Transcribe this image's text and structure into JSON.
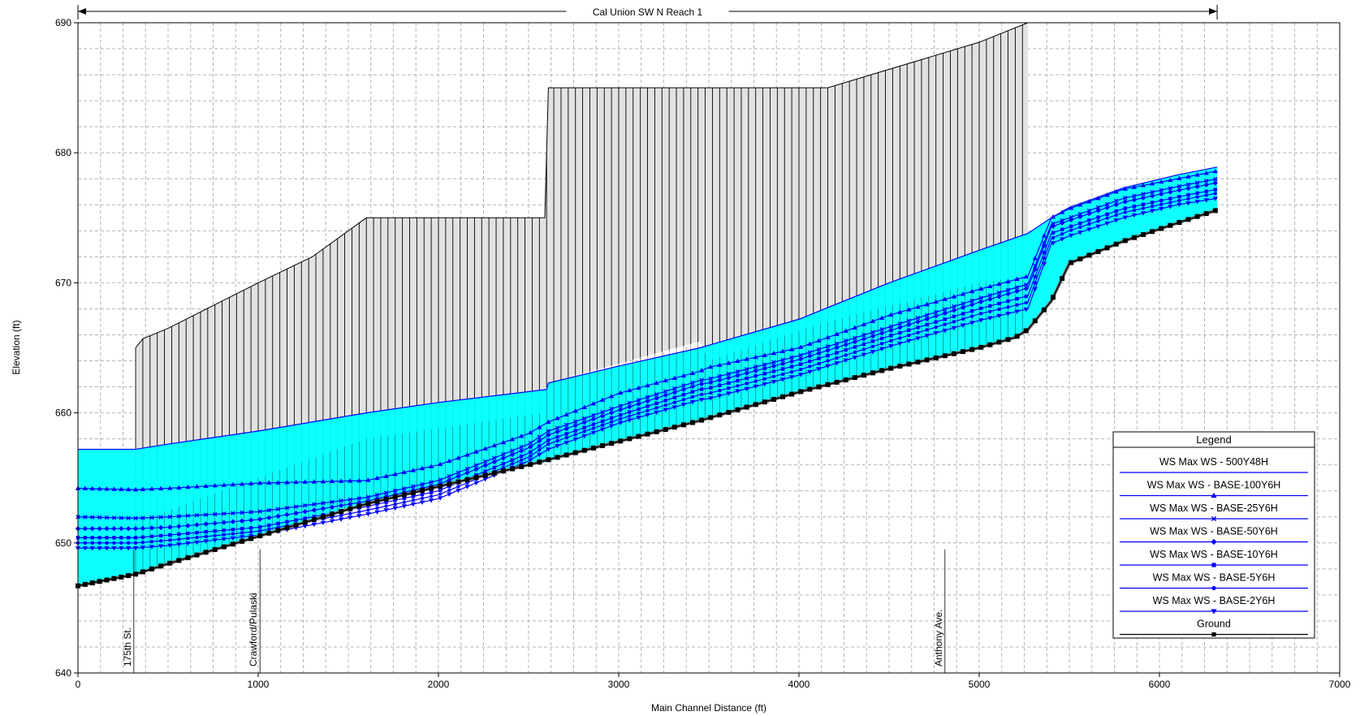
{
  "chart_data": {
    "type": "line",
    "title": "",
    "reach_label": "Cal Union SW N Reach 1",
    "xlabel": "Main Channel Distance (ft)",
    "ylabel": "Elevation (ft)",
    "xlim": [
      0,
      7000
    ],
    "ylim": [
      640,
      690
    ],
    "x_ticks": [
      0,
      1000,
      2000,
      3000,
      4000,
      5000,
      6000,
      7000
    ],
    "y_ticks": [
      640,
      650,
      660,
      670,
      680,
      690
    ],
    "x_tick_labels": [
      "0",
      "1000",
      "2000",
      "3000",
      "4000",
      "5000",
      "6000",
      "7000"
    ],
    "y_tick_labels": [
      "640",
      "650",
      "660",
      "670",
      "680",
      "690"
    ],
    "grid": true,
    "legend_position": "lower-right",
    "legend_title": "Legend",
    "reach_extent": [
      0,
      6320
    ],
    "colors": {
      "water_fill": "#00ffff",
      "ws_line": "#0000ff",
      "ground": "#000000",
      "structure_fill": "#e2e2e2",
      "grid": "#b4b4b4"
    },
    "annotations": [
      {
        "label": "175th St.",
        "x": 310
      },
      {
        "label": "Crawford/Pulaski",
        "x": 1010
      },
      {
        "label": "Anthony Ave.",
        "x": 4810
      }
    ],
    "ground": {
      "name": "Ground",
      "x": [
        0,
        320,
        500,
        1000,
        1600,
        2500,
        2610,
        3000,
        3450,
        3600,
        4000,
        4500,
        5000,
        5200,
        5270,
        5400,
        5500,
        5800,
        6100,
        6320
      ],
      "y": [
        646.7,
        647.6,
        648.4,
        650.5,
        653.0,
        656.0,
        656.4,
        657.8,
        659.4,
        660.0,
        661.6,
        663.4,
        665.0,
        665.8,
        666.4,
        668.6,
        671.5,
        673.2,
        674.6,
        675.6
      ]
    },
    "structure": {
      "x": [
        320,
        360,
        500,
        1000,
        1300,
        1600,
        2590,
        2600,
        2610,
        3450,
        3500,
        4150,
        4160,
        5000,
        5270
      ],
      "top": [
        665.0,
        665.7,
        666.5,
        670.0,
        672.0,
        675.0,
        675.0,
        680.0,
        685.0,
        685.0,
        685.0,
        685.0,
        685.0,
        688.5,
        690.0
      ],
      "bottom": [
        651.5,
        651.8,
        652.5,
        655.0,
        656.5,
        658.0,
        660.0,
        662.0,
        662.3,
        665.5,
        664.0,
        667.0,
        667.0,
        670.0,
        670.5
      ]
    },
    "series": [
      {
        "name": "WS  Max WS - 500Y48H",
        "marker": "none",
        "x": [
          0,
          320,
          500,
          1000,
          1600,
          2000,
          2600,
          2610,
          3000,
          3450,
          3500,
          4000,
          4500,
          5000,
          5270,
          5400,
          5500,
          5800,
          6100,
          6320
        ],
        "y": [
          657.2,
          657.2,
          657.6,
          658.6,
          660.0,
          660.8,
          661.8,
          662.3,
          663.6,
          665.0,
          665.2,
          667.2,
          670.0,
          672.5,
          673.8,
          675.0,
          675.8,
          677.3,
          678.3,
          678.9
        ]
      },
      {
        "name": "WS  Max WS - BASE-100Y6H",
        "marker": "triangle",
        "x": [
          0,
          320,
          500,
          1000,
          1600,
          2000,
          2500,
          2610,
          3000,
          3450,
          3500,
          4000,
          4500,
          5000,
          5270,
          5400,
          5500,
          5800,
          6100,
          6320
        ],
        "y": [
          654.2,
          654.1,
          654.2,
          654.6,
          654.8,
          656.0,
          658.4,
          659.3,
          661.5,
          663.2,
          663.5,
          665.0,
          667.5,
          669.5,
          670.5,
          675.0,
          675.7,
          677.2,
          678.0,
          678.6
        ]
      },
      {
        "name": "WS  Max WS - BASE-25Y6H",
        "marker": "x",
        "x": [
          0,
          320,
          500,
          1000,
          1600,
          2000,
          2500,
          2610,
          3000,
          3450,
          3500,
          4000,
          4500,
          5000,
          5270,
          5400,
          5500,
          5800,
          6100,
          6320
        ],
        "y": [
          652.0,
          651.9,
          652.0,
          652.4,
          653.5,
          654.8,
          657.6,
          658.6,
          660.5,
          662.5,
          662.6,
          664.4,
          666.6,
          668.8,
          669.9,
          674.5,
          675.0,
          676.5,
          677.4,
          678.0
        ]
      },
      {
        "name": "WS  Max WS - BASE-50Y6H",
        "marker": "diamond",
        "x": [
          0,
          320,
          500,
          1000,
          1600,
          2000,
          2500,
          2610,
          3000,
          3450,
          3500,
          4000,
          4500,
          5000,
          5270,
          5400,
          5500,
          5800,
          6100,
          6320
        ],
        "y": [
          651.1,
          651.1,
          651.2,
          651.8,
          653.2,
          654.5,
          657.3,
          658.3,
          660.2,
          662.2,
          662.3,
          664.1,
          666.3,
          668.5,
          669.6,
          674.3,
          674.8,
          676.2,
          677.1,
          677.7
        ]
      },
      {
        "name": "WS  Max WS - BASE-10Y6H",
        "marker": "square",
        "x": [
          0,
          320,
          500,
          1000,
          1600,
          2000,
          2500,
          2610,
          3000,
          3450,
          3500,
          4000,
          4500,
          5000,
          5270,
          5400,
          5500,
          5800,
          6100,
          6320
        ],
        "y": [
          650.4,
          650.4,
          650.6,
          651.2,
          652.8,
          654.0,
          656.9,
          657.9,
          659.8,
          661.8,
          661.9,
          663.7,
          665.9,
          668.0,
          669.0,
          673.8,
          674.3,
          675.7,
          676.6,
          677.2
        ]
      },
      {
        "name": "WS  Max WS - BASE-5Y6H",
        "marker": "circle",
        "x": [
          0,
          320,
          500,
          1000,
          1600,
          2000,
          2500,
          2610,
          3000,
          3450,
          3500,
          4000,
          4500,
          5000,
          5270,
          5400,
          5500,
          5800,
          6100,
          6320
        ],
        "y": [
          650.0,
          650.0,
          650.2,
          650.9,
          652.5,
          653.7,
          656.6,
          657.6,
          659.5,
          661.4,
          661.5,
          663.3,
          665.5,
          667.6,
          668.5,
          673.4,
          674.0,
          675.4,
          676.3,
          676.9
        ]
      },
      {
        "name": "WS  Max WS - BASE-2Y6H",
        "marker": "triangle-down",
        "x": [
          0,
          320,
          500,
          1000,
          1600,
          2000,
          2500,
          2610,
          3000,
          3450,
          3500,
          4000,
          4500,
          5000,
          5270,
          5400,
          5500,
          5800,
          6100,
          6320
        ],
        "y": [
          649.6,
          649.6,
          649.8,
          650.6,
          652.2,
          653.4,
          656.3,
          657.2,
          659.2,
          661.0,
          661.1,
          662.9,
          665.1,
          667.1,
          668.0,
          673.0,
          673.6,
          675.0,
          676.0,
          676.5
        ]
      }
    ]
  }
}
